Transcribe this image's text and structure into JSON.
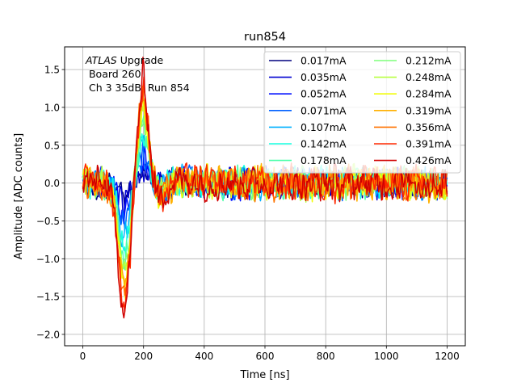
{
  "chart_data": {
    "type": "line",
    "title": "run854",
    "xlabel": "Time [ns]",
    "ylabel": "Amplitude [ADC counts]",
    "xlim": [
      -60,
      1260
    ],
    "ylim": [
      -2.15,
      1.8
    ],
    "xticks": [
      0,
      200,
      400,
      600,
      800,
      1000,
      1200
    ],
    "yticks": [
      -2.0,
      -1.5,
      -1.0,
      -0.5,
      0.0,
      0.5,
      1.0,
      1.5
    ],
    "grid": true,
    "legend_location": "upper right",
    "legend_columns": 2,
    "annotation": {
      "line1_italic": "ATLAS",
      "line1_rest": " Upgrade",
      "line2": " Board 260",
      "line3": " Ch 3 35dB  Run 854"
    },
    "pulse_shape": {
      "x": [
        0,
        60,
        90,
        110,
        125,
        140,
        155,
        170,
        185,
        200,
        215,
        230,
        250,
        280,
        320,
        400,
        1200
      ],
      "y": [
        0.0,
        0.0,
        -0.1,
        -0.55,
        -1.3,
        -1.55,
        -0.9,
        0.05,
        0.85,
        1.3,
        0.75,
        0.1,
        -0.2,
        -0.05,
        0.05,
        0.0,
        0.0
      ],
      "note_scale_by_series": true
    },
    "sample_step_ns": 3,
    "series": [
      {
        "name": "0.017mA",
        "color": "#00007f",
        "pulse_scale": 0.1,
        "noise": 0.22
      },
      {
        "name": "0.035mA",
        "color": "#0000d0",
        "pulse_scale": 0.18,
        "noise": 0.24
      },
      {
        "name": "0.052mA",
        "color": "#0010ff",
        "pulse_scale": 0.26,
        "noise": 0.24
      },
      {
        "name": "0.071mA",
        "color": "#0060ff",
        "pulse_scale": 0.34,
        "noise": 0.24
      },
      {
        "name": "0.107mA",
        "color": "#00b0ff",
        "pulse_scale": 0.45,
        "noise": 0.25
      },
      {
        "name": "0.142mA",
        "color": "#16ffe1",
        "pulse_scale": 0.55,
        "noise": 0.25
      },
      {
        "name": "0.178mA",
        "color": "#4dffaa",
        "pulse_scale": 0.63,
        "noise": 0.25
      },
      {
        "name": "0.212mA",
        "color": "#7dff7a",
        "pulse_scale": 0.72,
        "noise": 0.25
      },
      {
        "name": "0.248mA",
        "color": "#b7ff40",
        "pulse_scale": 0.8,
        "noise": 0.26
      },
      {
        "name": "0.284mA",
        "color": "#f1fc06",
        "pulse_scale": 0.87,
        "noise": 0.26
      },
      {
        "name": "0.319mA",
        "color": "#ffb000",
        "pulse_scale": 0.93,
        "noise": 0.27
      },
      {
        "name": "0.356mA",
        "color": "#ff7300",
        "pulse_scale": 0.98,
        "noise": 0.27
      },
      {
        "name": "0.391mA",
        "color": "#ff2900",
        "pulse_scale": 1.05,
        "noise": 0.28
      },
      {
        "name": "0.426mA",
        "color": "#d10000",
        "pulse_scale": 1.12,
        "noise": 0.28
      }
    ]
  }
}
